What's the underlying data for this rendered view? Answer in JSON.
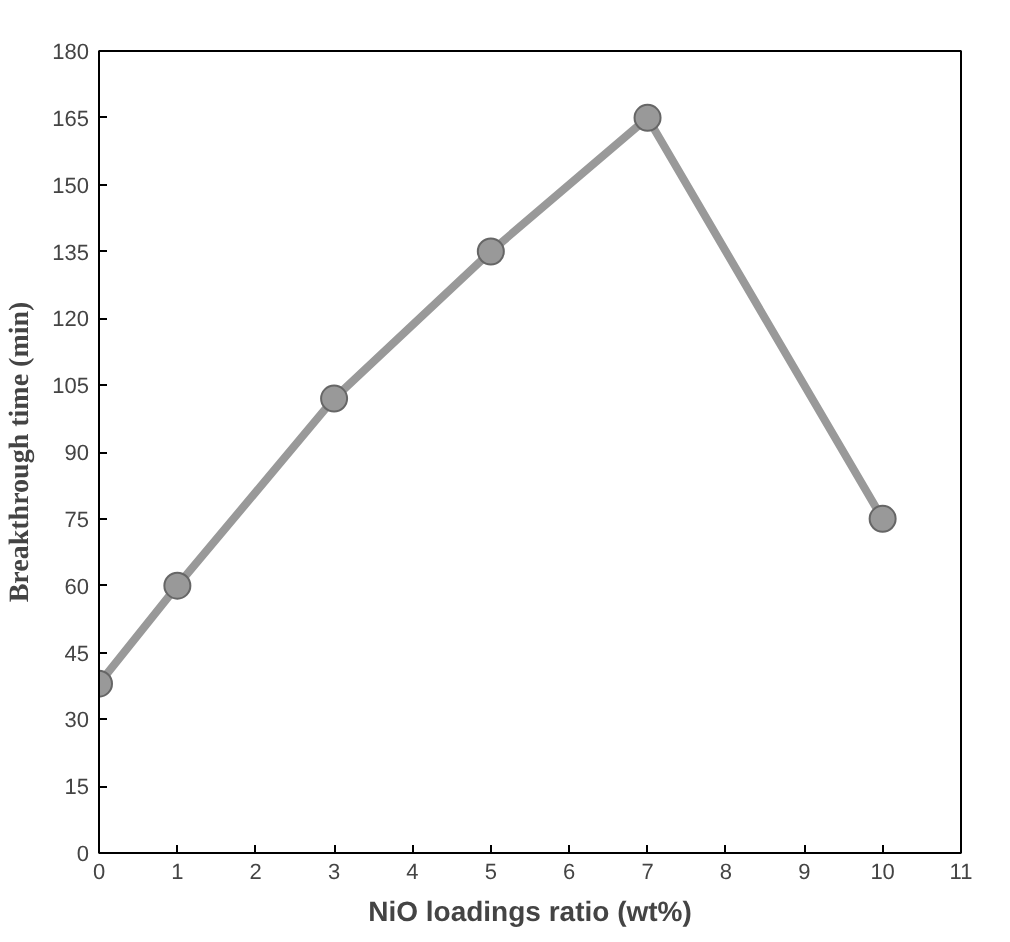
{
  "chart_data": {
    "type": "line",
    "xlabel": "NiO loadings ratio (wt%)",
    "ylabel": "Breakthrough time (min)",
    "x": [
      0,
      1,
      3,
      5,
      7,
      10
    ],
    "series": [
      {
        "color": "#999999",
        "values": [
          38,
          60,
          102,
          135,
          165,
          75
        ]
      }
    ],
    "xlim": [
      0,
      11
    ],
    "xticks": [
      0,
      1,
      2,
      3,
      4,
      5,
      6,
      7,
      8,
      9,
      10,
      11
    ],
    "ylim": [
      0,
      180
    ],
    "yticks": [
      0,
      15,
      30,
      45,
      60,
      75,
      90,
      105,
      120,
      135,
      150,
      165,
      180
    ],
    "grid": false,
    "marker": "circle",
    "line_style": "solid"
  }
}
